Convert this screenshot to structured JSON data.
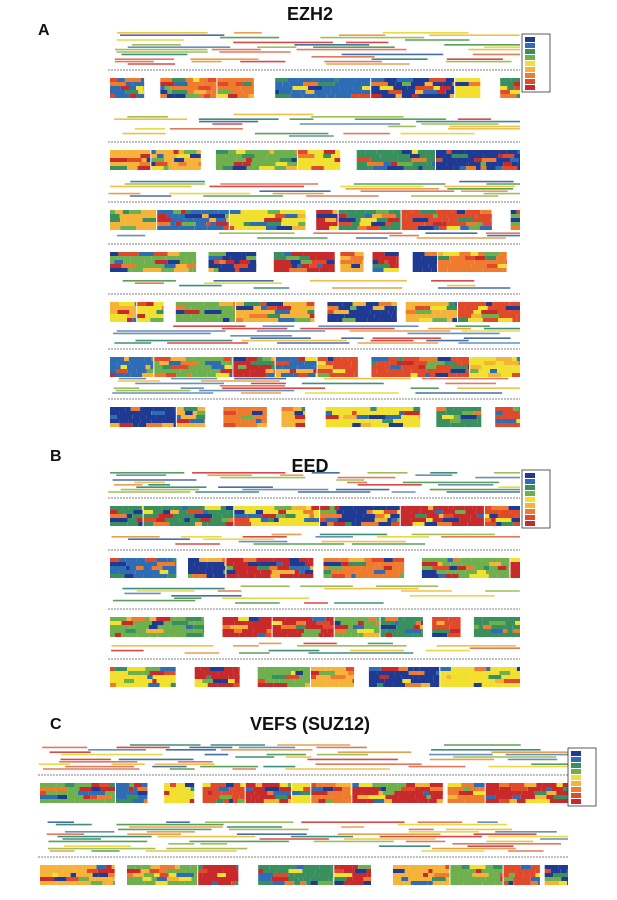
{
  "colors": {
    "peptide_palette": [
      "#4a6fa5",
      "#6a8fb8",
      "#3f8f7a",
      "#5aa05a",
      "#9fbf5a",
      "#e6d94a",
      "#f0c04a",
      "#e6a050",
      "#e07a5f",
      "#d94a4a"
    ],
    "heatmap_palette": [
      "#1f3a93",
      "#2e6db4",
      "#3a8f5f",
      "#6fb04e",
      "#f2e02e",
      "#f6b33a",
      "#ef7b2e",
      "#e04a2a",
      "#c8292a"
    ]
  },
  "panels": [
    {
      "letter": "A",
      "title": "EZH2",
      "rows": 8,
      "has_legend": true
    },
    {
      "letter": "B",
      "title": "EED",
      "rows": 4,
      "has_legend": true
    },
    {
      "letter": "C",
      "title": "VEFS (SUZ12)",
      "rows": 2,
      "has_legend": true
    }
  ]
}
